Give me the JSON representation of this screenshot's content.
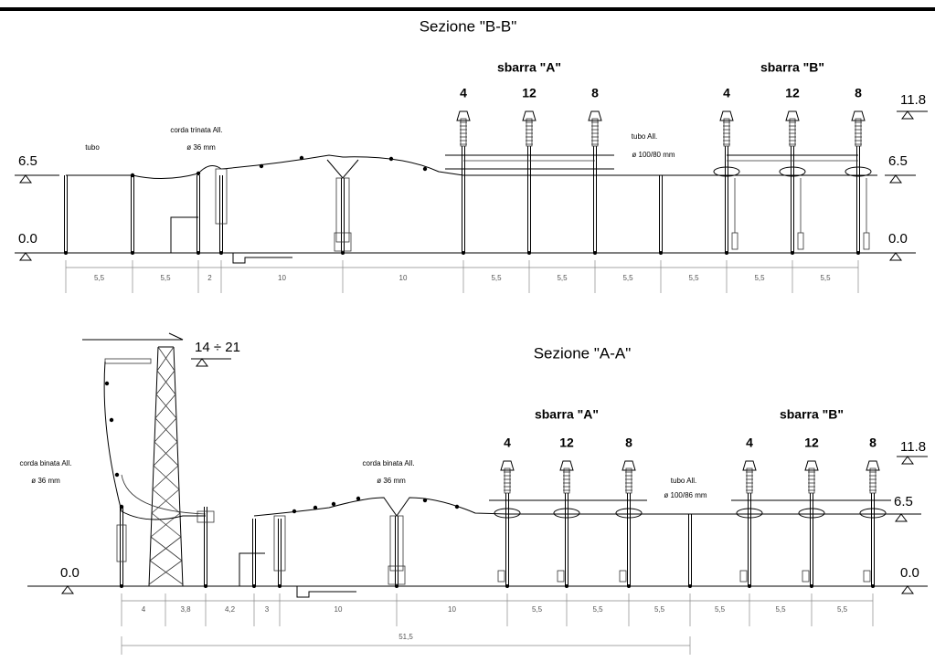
{
  "sections": [
    {
      "title": "Sezione \"B-B\"",
      "busbars": [
        "sbarra \"A\"",
        "sbarra \"B\""
      ],
      "phases": [
        "4",
        "12",
        "8",
        "4",
        "12",
        "8"
      ],
      "level_labels": [
        "6.5",
        "0.0",
        "11.8",
        "6.5",
        "0.0"
      ],
      "notes": [
        "tubo",
        "corda trinata All.",
        "ø 36 mm",
        "tubo All.",
        "ø 100/80 mm"
      ],
      "dimensions": [
        "5,5",
        "5,5",
        "2",
        "10",
        "10",
        "5,5",
        "5,5",
        "5,5",
        "5,5",
        "5,5",
        "5,5"
      ]
    },
    {
      "title": "Sezione \"A-A\"",
      "busbars": [
        "sbarra \"A\"",
        "sbarra \"B\""
      ],
      "phases": [
        "4",
        "12",
        "8",
        "4",
        "12",
        "8"
      ],
      "level_labels": [
        "14 ÷ 21",
        "0.0",
        "11.8",
        "6.5",
        "0.0"
      ],
      "notes": [
        "corda binata All.",
        "ø 36 mm",
        "corda binata All.",
        "ø 36 mm",
        "tubo All.",
        "ø 100/86 mm"
      ],
      "dimensions": [
        "4",
        "3,8",
        "4,2",
        "3",
        "10",
        "10",
        "5,5",
        "5,5",
        "5,5",
        "5,5",
        "5,5",
        "5,5"
      ],
      "total_dimension": "51,5"
    }
  ]
}
